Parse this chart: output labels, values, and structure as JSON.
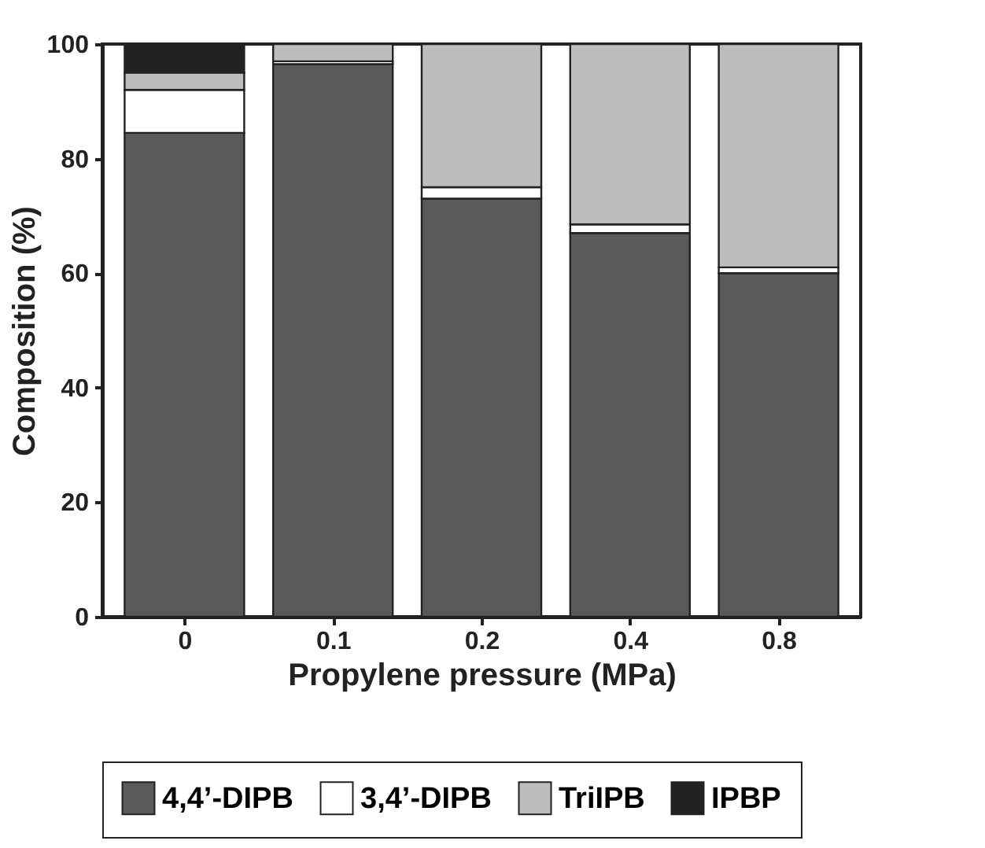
{
  "chart_data": {
    "type": "bar",
    "stacked": true,
    "xlabel": "Propylene pressure (MPa)",
    "ylabel": "Composition (%)",
    "categories": [
      "0",
      "0.1",
      "0.2",
      "0.4",
      "0.8"
    ],
    "series": [
      {
        "name": "4,4’-DIPB",
        "color": "#5a5a5a",
        "values": [
          84.5,
          96.5,
          73,
          67,
          60
        ]
      },
      {
        "name": "3,4’-DIPB",
        "color": "#ffffff",
        "values": [
          7.5,
          0.5,
          2,
          1.5,
          1
        ]
      },
      {
        "name": "TriIPB",
        "color": "#bdbdbd",
        "values": [
          3,
          3,
          25,
          31.5,
          39
        ]
      },
      {
        "name": "IPBP",
        "color": "#222222",
        "values": [
          5,
          null,
          null,
          null,
          null
        ]
      }
    ],
    "ylim": [
      0,
      100
    ],
    "yticks": [
      0,
      20,
      40,
      60,
      80,
      100
    ],
    "grid": false,
    "legend": "bottom"
  }
}
